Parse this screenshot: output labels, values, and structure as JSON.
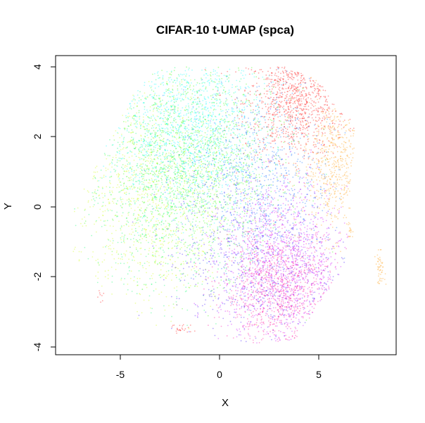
{
  "chart_data": {
    "type": "scatter",
    "title": "CIFAR-10 t-UMAP (spca)",
    "xlabel": "X",
    "ylabel": "Y",
    "xlim": [
      -8.1,
      9.0
    ],
    "ylim": [
      -4.25,
      4.1
    ],
    "x_ticks": [
      -5,
      0,
      5
    ],
    "y_ticks": [
      -4,
      -2,
      0,
      2,
      4
    ],
    "x_tick_labels": [
      "-5",
      "0",
      "5"
    ],
    "y_tick_labels": [
      "-4",
      "-2",
      "0",
      "2",
      "4"
    ],
    "grid": false,
    "legend": "none",
    "point_size": "small",
    "alpha": 0.35,
    "series": [
      {
        "color": "#FF0000",
        "cx": 3.8,
        "cy": 3.0,
        "sx": 1.3,
        "sy": 0.8,
        "n": 900
      },
      {
        "color": "#FF9900",
        "cx": 5.8,
        "cy": 1.2,
        "sx": 0.8,
        "sy": 1.0,
        "n": 500
      },
      {
        "color": "#CCFF00",
        "cx": -3.5,
        "cy": 0.3,
        "sx": 1.9,
        "sy": 1.7,
        "n": 1000
      },
      {
        "color": "#33FF00",
        "cx": -1.0,
        "cy": 1.3,
        "sx": 2.1,
        "sy": 1.5,
        "n": 1100
      },
      {
        "color": "#00FF66",
        "cx": -2.5,
        "cy": 0.8,
        "sx": 2.2,
        "sy": 1.6,
        "n": 1000
      },
      {
        "color": "#00FFFF",
        "cx": -1.5,
        "cy": 2.3,
        "sx": 2.0,
        "sy": 1.1,
        "n": 1100
      },
      {
        "color": "#0066FF",
        "cx": 1.8,
        "cy": 0.8,
        "sx": 1.9,
        "sy": 1.3,
        "n": 800
      },
      {
        "color": "#3300FF",
        "cx": 1.8,
        "cy": -1.5,
        "sx": 2.1,
        "sy": 1.2,
        "n": 700
      },
      {
        "color": "#CC00FF",
        "cx": 3.3,
        "cy": -1.7,
        "sx": 1.6,
        "sy": 1.2,
        "n": 1100
      },
      {
        "color": "#FF0099",
        "cx": 3.0,
        "cy": -2.4,
        "sx": 1.4,
        "sy": 0.9,
        "n": 900
      }
    ],
    "small_clusters": [
      {
        "color": "#FF9900",
        "cx": 8.1,
        "cy": -1.75,
        "sx": 0.12,
        "sy": 0.22,
        "n": 50
      },
      {
        "color": "#FF9900",
        "cx": 6.6,
        "cy": -0.7,
        "sx": 0.08,
        "sy": 0.1,
        "n": 14
      },
      {
        "color": "#FF0000",
        "cx": -1.9,
        "cy": -3.5,
        "sx": 0.3,
        "sy": 0.08,
        "n": 25
      },
      {
        "color": "#FF0000",
        "cx": -6.0,
        "cy": -2.5,
        "sx": 0.08,
        "sy": 0.1,
        "n": 8
      }
    ]
  }
}
